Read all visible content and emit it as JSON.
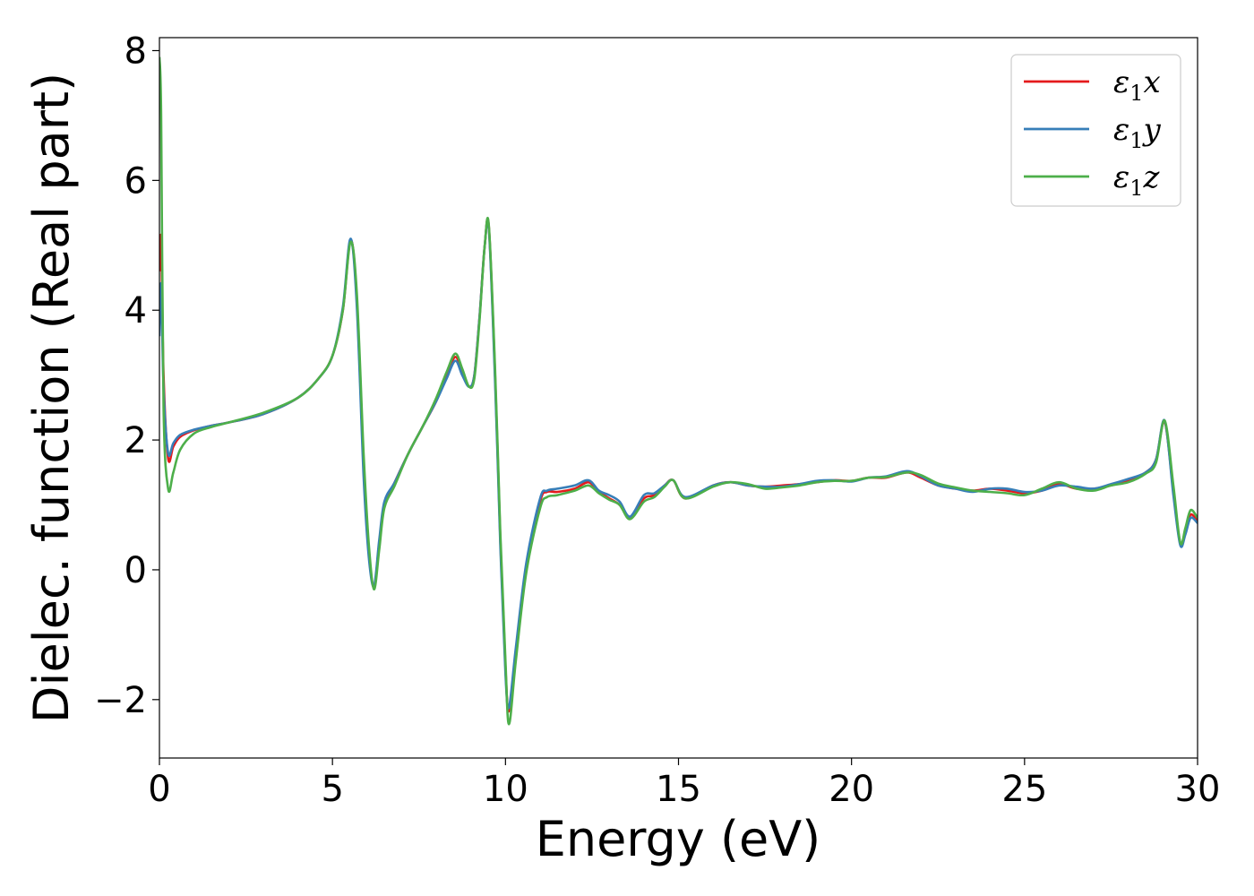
{
  "chart_data": {
    "type": "line",
    "xlabel": "Energy (eV)",
    "ylabel": "Dielec. function (Real part)",
    "xlim": [
      0,
      30
    ],
    "ylim": [
      -2.9,
      8.2
    ],
    "xticks": [
      0,
      5,
      10,
      15,
      20,
      25,
      30
    ],
    "yticks": [
      -2,
      0,
      2,
      4,
      6,
      8
    ],
    "xtick_labels": [
      "0",
      "5",
      "10",
      "15",
      "20",
      "25",
      "30"
    ],
    "ytick_labels": [
      "−2",
      "0",
      "2",
      "4",
      "6",
      "8"
    ],
    "grid": false,
    "legend_position": "top-right",
    "series": [
      {
        "name": "ε₁x",
        "legend_base": "ε",
        "legend_sub": "1",
        "legend_var": "x",
        "color": "#e41a1c",
        "x": [
          0.0,
          0.05,
          0.12,
          0.25,
          0.4,
          0.6,
          1.0,
          1.5,
          2.0,
          3.0,
          4.0,
          4.6,
          5.0,
          5.3,
          5.52,
          5.7,
          5.9,
          6.05,
          6.2,
          6.35,
          6.5,
          6.8,
          7.2,
          7.6,
          8.0,
          8.3,
          8.55,
          8.75,
          8.95,
          9.1,
          9.25,
          9.4,
          9.52,
          9.7,
          9.85,
          10.0,
          10.1,
          10.3,
          10.6,
          11.0,
          11.2,
          11.5,
          12.0,
          12.4,
          12.7,
          13.0,
          13.3,
          13.6,
          14.0,
          14.3,
          14.6,
          14.85,
          15.2,
          16.0,
          16.5,
          17.0,
          17.5,
          18.0,
          18.5,
          19.0,
          19.5,
          20.0,
          20.5,
          21.0,
          21.6,
          22.0,
          22.5,
          23.0,
          23.5,
          24.0,
          24.5,
          25.0,
          25.5,
          26.0,
          26.5,
          27.0,
          27.5,
          28.0,
          28.5,
          28.8,
          29.05,
          29.3,
          29.5,
          29.65,
          29.8,
          30.0
        ],
        "y": [
          4.6,
          5.1,
          3.0,
          1.72,
          1.9,
          2.05,
          2.15,
          2.22,
          2.27,
          2.4,
          2.65,
          2.95,
          3.3,
          4.0,
          5.08,
          4.2,
          1.6,
          0.3,
          -0.27,
          0.4,
          1.0,
          1.35,
          1.8,
          2.2,
          2.6,
          3.0,
          3.28,
          3.05,
          2.82,
          3.0,
          3.9,
          5.0,
          5.28,
          3.0,
          0.5,
          -1.5,
          -2.18,
          -1.3,
          0.0,
          1.05,
          1.2,
          1.2,
          1.25,
          1.35,
          1.2,
          1.1,
          1.0,
          0.8,
          1.1,
          1.15,
          1.3,
          1.38,
          1.1,
          1.3,
          1.35,
          1.3,
          1.28,
          1.3,
          1.32,
          1.35,
          1.38,
          1.37,
          1.42,
          1.42,
          1.5,
          1.42,
          1.3,
          1.25,
          1.22,
          1.25,
          1.22,
          1.18,
          1.22,
          1.32,
          1.25,
          1.25,
          1.3,
          1.38,
          1.5,
          1.7,
          2.28,
          1.2,
          0.4,
          0.6,
          0.85,
          0.75
        ]
      },
      {
        "name": "ε₁y",
        "legend_base": "ε",
        "legend_sub": "1",
        "legend_var": "y",
        "color": "#377eb8",
        "x": [
          0.0,
          0.05,
          0.12,
          0.25,
          0.4,
          0.6,
          1.0,
          1.5,
          2.0,
          3.0,
          4.0,
          4.6,
          5.0,
          5.3,
          5.52,
          5.7,
          5.9,
          6.05,
          6.2,
          6.35,
          6.5,
          6.8,
          7.2,
          7.6,
          8.0,
          8.3,
          8.55,
          8.75,
          8.95,
          9.1,
          9.25,
          9.4,
          9.52,
          9.7,
          9.85,
          10.0,
          10.1,
          10.3,
          10.6,
          11.0,
          11.2,
          11.5,
          12.0,
          12.4,
          12.7,
          13.0,
          13.3,
          13.6,
          14.0,
          14.3,
          14.6,
          14.85,
          15.2,
          16.0,
          16.5,
          17.0,
          17.5,
          18.0,
          18.5,
          19.0,
          19.5,
          20.0,
          20.5,
          21.0,
          21.6,
          22.0,
          22.5,
          23.0,
          23.5,
          24.0,
          24.5,
          25.0,
          25.5,
          26.0,
          26.5,
          27.0,
          27.5,
          28.0,
          28.5,
          28.8,
          29.05,
          29.3,
          29.5,
          29.65,
          29.8,
          30.0
        ],
        "y": [
          3.6,
          4.4,
          2.8,
          1.8,
          1.95,
          2.08,
          2.16,
          2.22,
          2.27,
          2.4,
          2.65,
          2.95,
          3.3,
          4.05,
          5.1,
          4.1,
          1.45,
          0.2,
          -0.25,
          0.45,
          1.05,
          1.35,
          1.8,
          2.2,
          2.6,
          2.95,
          3.22,
          3.0,
          2.82,
          3.0,
          3.9,
          5.0,
          5.25,
          2.9,
          0.4,
          -1.6,
          -2.12,
          -1.2,
          0.1,
          1.1,
          1.22,
          1.25,
          1.3,
          1.38,
          1.22,
          1.15,
          1.05,
          0.82,
          1.15,
          1.18,
          1.3,
          1.38,
          1.12,
          1.3,
          1.35,
          1.3,
          1.28,
          1.28,
          1.32,
          1.37,
          1.38,
          1.36,
          1.42,
          1.44,
          1.52,
          1.44,
          1.3,
          1.25,
          1.2,
          1.25,
          1.25,
          1.2,
          1.22,
          1.3,
          1.28,
          1.25,
          1.32,
          1.4,
          1.5,
          1.7,
          2.3,
          1.15,
          0.38,
          0.55,
          0.8,
          0.72
        ]
      },
      {
        "name": "ε₁z",
        "legend_base": "ε",
        "legend_sub": "1",
        "legend_var": "z",
        "color": "#4daf4a",
        "x": [
          0.0,
          0.05,
          0.12,
          0.25,
          0.4,
          0.6,
          1.0,
          1.5,
          2.0,
          3.0,
          4.0,
          4.6,
          5.0,
          5.3,
          5.52,
          5.7,
          5.9,
          6.05,
          6.2,
          6.35,
          6.5,
          6.8,
          7.2,
          7.6,
          8.0,
          8.3,
          8.55,
          8.75,
          8.95,
          9.1,
          9.25,
          9.4,
          9.52,
          9.7,
          9.85,
          10.0,
          10.1,
          10.3,
          10.6,
          11.0,
          11.2,
          11.5,
          12.0,
          12.4,
          12.7,
          13.0,
          13.3,
          13.6,
          14.0,
          14.3,
          14.6,
          14.85,
          15.2,
          16.0,
          16.5,
          17.0,
          17.5,
          18.0,
          18.5,
          19.0,
          19.5,
          20.0,
          20.5,
          21.0,
          21.6,
          22.0,
          22.5,
          23.0,
          23.5,
          24.0,
          24.5,
          25.0,
          25.5,
          26.0,
          26.5,
          27.0,
          27.5,
          28.0,
          28.5,
          28.8,
          29.05,
          29.3,
          29.5,
          29.65,
          29.8,
          30.0
        ],
        "y": [
          7.9,
          7.0,
          2.5,
          1.25,
          1.5,
          1.85,
          2.1,
          2.2,
          2.27,
          2.42,
          2.65,
          2.95,
          3.3,
          4.0,
          5.05,
          4.3,
          1.8,
          0.4,
          -0.3,
          0.3,
          0.95,
          1.3,
          1.8,
          2.2,
          2.65,
          3.05,
          3.33,
          3.1,
          2.82,
          2.95,
          3.85,
          5.0,
          5.3,
          3.1,
          0.6,
          -1.4,
          -2.38,
          -1.4,
          -0.05,
          0.95,
          1.12,
          1.15,
          1.22,
          1.3,
          1.18,
          1.08,
          1.0,
          0.78,
          1.05,
          1.12,
          1.28,
          1.38,
          1.1,
          1.28,
          1.35,
          1.32,
          1.25,
          1.27,
          1.3,
          1.35,
          1.37,
          1.37,
          1.42,
          1.43,
          1.5,
          1.46,
          1.33,
          1.27,
          1.22,
          1.2,
          1.18,
          1.15,
          1.25,
          1.35,
          1.25,
          1.22,
          1.3,
          1.35,
          1.48,
          1.65,
          2.3,
          1.3,
          0.42,
          0.65,
          0.92,
          0.8
        ]
      }
    ]
  }
}
